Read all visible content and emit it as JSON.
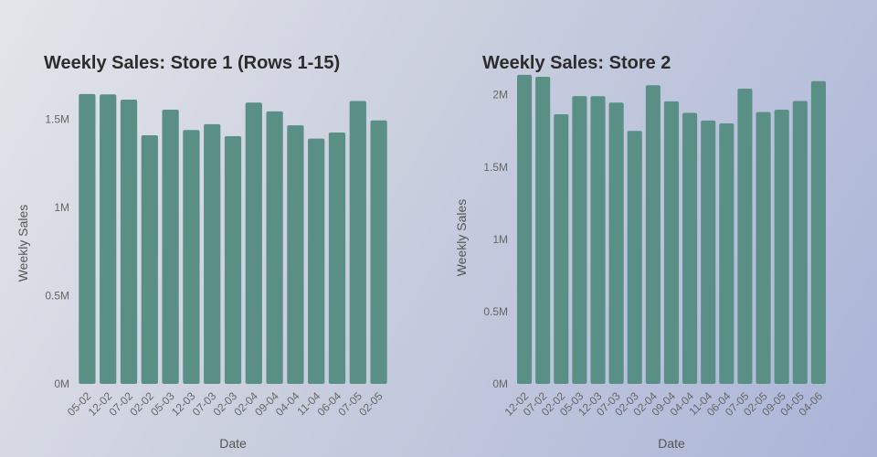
{
  "chart_data": [
    {
      "type": "bar",
      "title": "Weekly Sales: Store 1 (Rows 1-15)",
      "xlabel": "Date",
      "ylabel": "Weekly Sales",
      "categories": [
        "05-02",
        "12-02",
        "07-02",
        "02-02",
        "05-03",
        "12-03",
        "07-03",
        "02-03",
        "02-04",
        "09-04",
        "04-04",
        "11-04",
        "06-04",
        "07-05",
        "02-05"
      ],
      "values": [
        1643690,
        1641957,
        1611968,
        1409727,
        1554806,
        1439541,
        1472515,
        1404429,
        1594968,
        1545418,
        1466058,
        1391256,
        1425100,
        1603955,
        1494251
      ],
      "ylim": [
        0,
        1700000
      ],
      "yticks": [
        0,
        500000,
        1000000,
        1500000
      ],
      "ytick_labels": [
        "0M",
        "0.5M",
        "1M",
        "1.5M"
      ],
      "grid": false
    },
    {
      "type": "bar",
      "title": "Weekly Sales: Store 2",
      "xlabel": "Date",
      "ylabel": "Weekly Sales",
      "categories": [
        "12-02",
        "07-02",
        "02-02",
        "05-03",
        "12-03",
        "07-03",
        "02-03",
        "02-04",
        "09-04",
        "04-04",
        "11-04",
        "06-04",
        "07-05",
        "02-05",
        "09-05",
        "04-05",
        "04-06"
      ],
      "values": [
        2137809,
        2124451,
        1865097,
        1991013,
        1990483,
        1946070,
        1750197,
        2066187,
        1954689,
        1874957,
        1821990,
        1802450,
        2042581,
        1880752,
        1896937,
        1957114,
        2095000
      ],
      "ylim": [
        0,
        2150000
      ],
      "yticks": [
        0,
        500000,
        1000000,
        1500000,
        2000000
      ],
      "ytick_labels": [
        "0M",
        "0.5M",
        "1M",
        "1.5M",
        "2M"
      ],
      "grid": false
    }
  ]
}
